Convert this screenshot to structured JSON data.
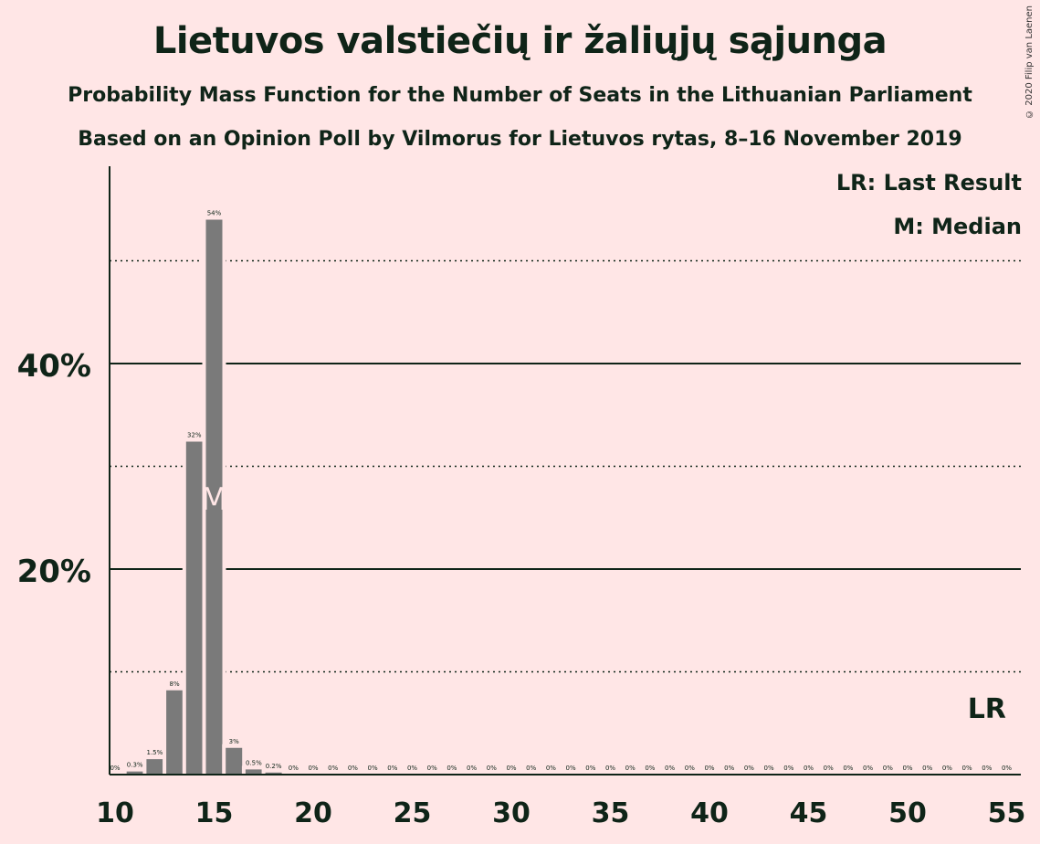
{
  "title": "Lietuvos valstiečių ir žaliųjų sąjunga",
  "subtitle1": "Probability Mass Function for the Number of Seats in the Lithuanian Parliament",
  "subtitle2": "Based on an Opinion Poll by Vilmorus for Lietuvos rytas, 8–16 November 2019",
  "copyright": "© 2020 Filip van Laenen",
  "legend": {
    "last_result": "LR: Last Result",
    "median": "M: Median"
  },
  "colors": {
    "background": "#FFE6E6",
    "bar": "#7A7A7A",
    "text": "#0F2418",
    "median_marker": "#FFE6E6"
  },
  "chart_data": {
    "type": "bar",
    "x": [
      10,
      11,
      12,
      13,
      14,
      15,
      16,
      17,
      18,
      19,
      20,
      21,
      22,
      23,
      24,
      25,
      26,
      27,
      28,
      29,
      30,
      31,
      32,
      33,
      34,
      35,
      36,
      37,
      38,
      39,
      40,
      41,
      42,
      43,
      44,
      45,
      46,
      47,
      48,
      49,
      50,
      51,
      52,
      53,
      54,
      55
    ],
    "values": [
      0,
      0.3,
      1.5,
      8.2,
      32.4,
      54.0,
      2.6,
      0.5,
      0.2,
      0,
      0,
      0,
      0,
      0,
      0,
      0,
      0,
      0,
      0,
      0,
      0,
      0,
      0,
      0,
      0,
      0,
      0,
      0,
      0,
      0,
      0,
      0,
      0,
      0,
      0,
      0,
      0,
      0,
      0,
      0,
      0,
      0,
      0,
      0,
      0,
      0
    ],
    "value_labels": [
      "0%",
      "0.3%",
      "1.5%",
      "8%",
      "32%",
      "54%",
      "3%",
      "0.5%",
      "0.2%",
      "0%",
      "0%",
      "0%",
      "0%",
      "0%",
      "0%",
      "0%",
      "0%",
      "0%",
      "0%",
      "0%",
      "0%",
      "0%",
      "0%",
      "0%",
      "0%",
      "0%",
      "0%",
      "0%",
      "0%",
      "0%",
      "0%",
      "0%",
      "0%",
      "0%",
      "0%",
      "0%",
      "0%",
      "0%",
      "0%",
      "0%",
      "0%",
      "0%",
      "0%",
      "0%",
      "0%",
      "0%"
    ],
    "xticks": [
      "10",
      "15",
      "20",
      "25",
      "30",
      "35",
      "40",
      "45",
      "50",
      "55"
    ],
    "yticks": [
      {
        "value": 20,
        "label": "20%"
      },
      {
        "value": 40,
        "label": "40%"
      }
    ],
    "ylim": [
      0,
      58
    ],
    "xlim": [
      10,
      55
    ],
    "gridlines_solid": [
      20,
      40
    ],
    "gridlines_dotted": [
      10,
      30,
      50
    ],
    "median": 15,
    "median_label": "M",
    "last_result": 54,
    "last_result_label": "LR"
  }
}
